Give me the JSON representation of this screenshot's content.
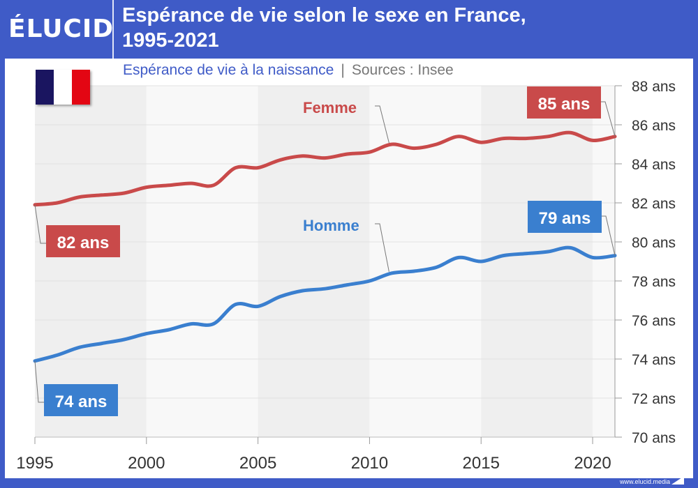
{
  "header": {
    "logo": "ÉLUCID",
    "title_line1": "Espérance de vie selon le sexe en France,",
    "title_line2": "1995-2021"
  },
  "subtitle": {
    "text": "Espérance de vie à la naissance",
    "separator": "|",
    "source": "Sources : Insee"
  },
  "flag": {
    "colors": [
      "#1a1560",
      "#ffffff",
      "#e30613"
    ]
  },
  "footer": {
    "url": "www.elucid.media"
  },
  "colors": {
    "brand": "#3f5bc7",
    "femme": "#c94a4a",
    "homme": "#3a7fcf",
    "band_dark": "#efefef",
    "band_light": "#f8f8f8"
  },
  "chart_data": {
    "type": "line",
    "title": "Espérance de vie selon le sexe en France, 1995-2021",
    "subtitle": "Espérance de vie à la naissance | Sources : Insee",
    "xlabel": "",
    "ylabel": "",
    "x": [
      1995,
      1996,
      1997,
      1998,
      1999,
      2000,
      2001,
      2002,
      2003,
      2004,
      2005,
      2006,
      2007,
      2008,
      2009,
      2010,
      2011,
      2012,
      2013,
      2014,
      2015,
      2016,
      2017,
      2018,
      2019,
      2020,
      2021
    ],
    "xlim": [
      1995,
      2021
    ],
    "ylim": [
      70,
      88
    ],
    "xticks": [
      1995,
      2000,
      2005,
      2010,
      2015,
      2020
    ],
    "xtick_labels": [
      "1995",
      "2000",
      "2005",
      "2010",
      "2015",
      "2020"
    ],
    "yticks": [
      70,
      72,
      74,
      76,
      78,
      80,
      82,
      84,
      86,
      88
    ],
    "ytick_labels": [
      "70 ans",
      "72 ans",
      "74 ans",
      "76 ans",
      "78 ans",
      "80 ans",
      "82 ans",
      "84 ans",
      "86 ans",
      "88 ans"
    ],
    "y_axis_side": "right",
    "grid": true,
    "series": [
      {
        "name": "Femme",
        "color": "#c94a4a",
        "values": [
          81.9,
          82.0,
          82.3,
          82.4,
          82.5,
          82.8,
          82.9,
          83.0,
          82.9,
          83.8,
          83.8,
          84.2,
          84.4,
          84.3,
          84.5,
          84.6,
          85.0,
          84.8,
          85.0,
          85.4,
          85.1,
          85.3,
          85.3,
          85.4,
          85.6,
          85.2,
          85.4
        ],
        "start_label": "82 ans",
        "end_label": "85 ans"
      },
      {
        "name": "Homme",
        "color": "#3a7fcf",
        "values": [
          73.9,
          74.2,
          74.6,
          74.8,
          75.0,
          75.3,
          75.5,
          75.8,
          75.8,
          76.8,
          76.7,
          77.2,
          77.5,
          77.6,
          77.8,
          78.0,
          78.4,
          78.5,
          78.7,
          79.2,
          79.0,
          79.3,
          79.4,
          79.5,
          79.7,
          79.2,
          79.3
        ],
        "start_label": "74 ans",
        "end_label": "79 ans"
      }
    ]
  }
}
